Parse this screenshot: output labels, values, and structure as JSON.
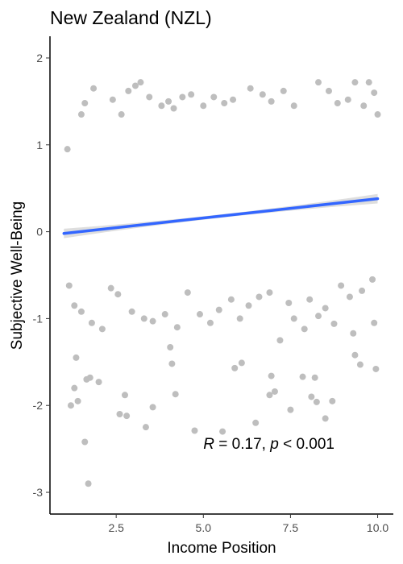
{
  "chart_data": {
    "type": "scatter",
    "title": "New Zealand (NZL)",
    "xlabel": "Income Position",
    "ylabel": "Subjective Well-Being",
    "xlim": [
      0.6,
      10.45
    ],
    "ylim": [
      -3.25,
      2.25
    ],
    "x_ticks": [
      2.5,
      5.0,
      7.5,
      10.0
    ],
    "x_tick_labels": [
      "2.5",
      "5.0",
      "7.5",
      "10.0"
    ],
    "y_ticks": [
      -3,
      -2,
      -1,
      0,
      1,
      2
    ],
    "y_tick_labels": [
      "-3",
      "-2",
      "-1",
      "0",
      "1",
      "2"
    ],
    "grid": false,
    "point_color": "#bebebe",
    "line_color": "#3366ff",
    "band_color": "#d3d3d3",
    "regression": {
      "x": [
        1.0,
        10.0
      ],
      "y": [
        -0.02,
        0.38
      ],
      "ci_halfwidth_ends": 0.055,
      "ci_halfwidth_mid": 0.02
    },
    "annotation": {
      "r_symbol": "R",
      "r_text": " = 0.17, ",
      "p_symbol": "p",
      "p_text": " < 0.001",
      "x": 5.0,
      "y": -2.5
    },
    "points": [
      [
        1.2,
        -2.0
      ],
      [
        1.35,
        -1.45
      ],
      [
        1.7,
        -2.9
      ],
      [
        1.6,
        -2.42
      ],
      [
        1.65,
        -1.7
      ],
      [
        1.75,
        -1.68
      ],
      [
        1.3,
        -1.8
      ],
      [
        1.4,
        -1.95
      ],
      [
        2.0,
        -1.73
      ],
      [
        2.6,
        -2.1
      ],
      [
        2.75,
        -1.88
      ],
      [
        2.8,
        -2.12
      ],
      [
        3.35,
        -2.25
      ],
      [
        3.55,
        -2.02
      ],
      [
        4.1,
        -1.52
      ],
      [
        4.2,
        -1.87
      ],
      [
        4.75,
        -2.29
      ],
      [
        5.55,
        -2.3
      ],
      [
        5.9,
        -1.57
      ],
      [
        6.1,
        -1.51
      ],
      [
        6.5,
        -2.2
      ],
      [
        6.9,
        -1.88
      ],
      [
        6.95,
        -1.66
      ],
      [
        7.05,
        -1.84
      ],
      [
        7.5,
        -2.05
      ],
      [
        7.85,
        -1.67
      ],
      [
        8.1,
        -1.9
      ],
      [
        8.2,
        -1.68
      ],
      [
        8.5,
        -2.15
      ],
      [
        8.25,
        -1.96
      ],
      [
        8.7,
        -1.95
      ],
      [
        9.35,
        -1.42
      ],
      [
        9.5,
        -1.53
      ],
      [
        9.95,
        -1.58
      ],
      [
        9.3,
        -1.17
      ],
      [
        9.9,
        -1.05
      ],
      [
        7.6,
        -1.0
      ],
      [
        7.9,
        -1.12
      ],
      [
        8.3,
        -0.97
      ],
      [
        8.75,
        -1.06
      ],
      [
        1.1,
        0.95
      ],
      [
        1.5,
        1.35
      ],
      [
        1.6,
        1.48
      ],
      [
        1.85,
        1.65
      ],
      [
        2.4,
        1.52
      ],
      [
        2.65,
        1.35
      ],
      [
        2.85,
        1.62
      ],
      [
        3.05,
        1.68
      ],
      [
        3.2,
        1.72
      ],
      [
        3.45,
        1.55
      ],
      [
        3.8,
        1.45
      ],
      [
        4.0,
        1.5
      ],
      [
        4.15,
        1.42
      ],
      [
        4.4,
        1.55
      ],
      [
        4.65,
        1.58
      ],
      [
        5.0,
        1.45
      ],
      [
        5.3,
        1.55
      ],
      [
        5.6,
        1.48
      ],
      [
        5.85,
        1.52
      ],
      [
        6.35,
        1.65
      ],
      [
        6.7,
        1.58
      ],
      [
        6.95,
        1.5
      ],
      [
        7.3,
        1.62
      ],
      [
        7.6,
        1.45
      ],
      [
        8.3,
        1.72
      ],
      [
        8.6,
        1.62
      ],
      [
        8.85,
        1.48
      ],
      [
        9.15,
        1.52
      ],
      [
        9.35,
        1.72
      ],
      [
        9.75,
        1.72
      ],
      [
        9.9,
        1.6
      ],
      [
        9.6,
        1.45
      ],
      [
        10.0,
        1.35
      ],
      [
        1.15,
        -0.62
      ],
      [
        1.3,
        -0.85
      ],
      [
        1.5,
        -0.92
      ],
      [
        1.8,
        -1.05
      ],
      [
        2.1,
        -1.12
      ],
      [
        2.35,
        -0.65
      ],
      [
        2.55,
        -0.72
      ],
      [
        2.95,
        -0.92
      ],
      [
        3.3,
        -1.0
      ],
      [
        3.55,
        -1.03
      ],
      [
        3.9,
        -0.95
      ],
      [
        4.05,
        -1.33
      ],
      [
        4.25,
        -1.1
      ],
      [
        4.55,
        -0.7
      ],
      [
        4.9,
        -0.95
      ],
      [
        5.2,
        -1.05
      ],
      [
        5.45,
        -0.9
      ],
      [
        5.8,
        -0.78
      ],
      [
        6.05,
        -1.0
      ],
      [
        6.3,
        -0.85
      ],
      [
        6.6,
        -0.75
      ],
      [
        6.9,
        -0.7
      ],
      [
        7.2,
        -1.25
      ],
      [
        7.45,
        -0.82
      ],
      [
        8.05,
        -0.78
      ],
      [
        8.5,
        -0.88
      ],
      [
        8.95,
        -0.62
      ],
      [
        9.2,
        -0.75
      ],
      [
        9.55,
        -0.68
      ],
      [
        9.85,
        -0.55
      ]
    ]
  }
}
